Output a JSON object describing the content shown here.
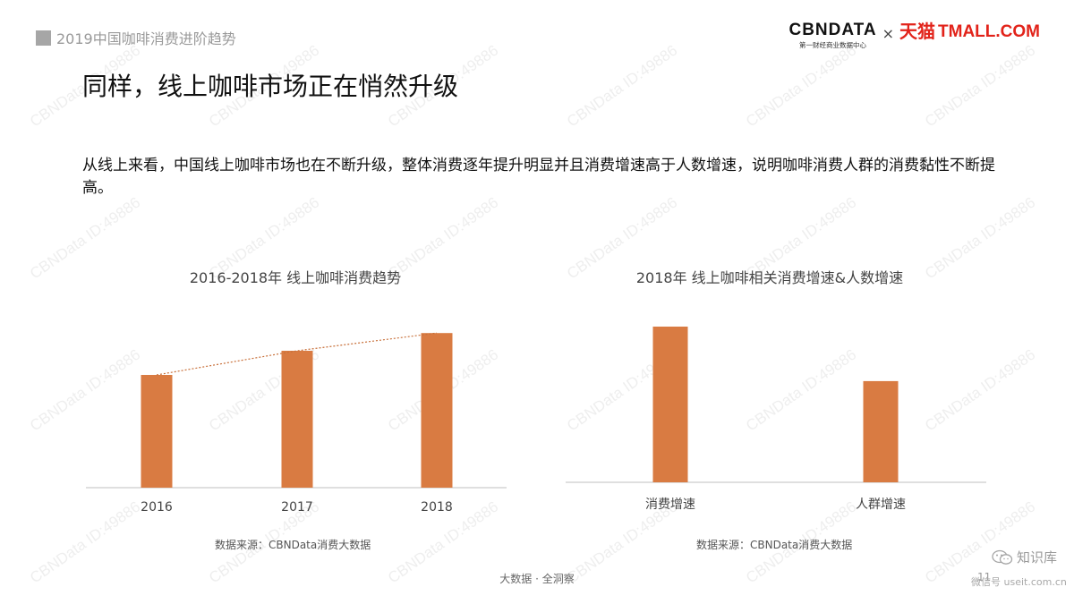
{
  "header": {
    "breadcrumb": "2019中国咖啡消费进阶趋势",
    "logo_main": "CBNDATA",
    "logo_sub": "第一财经商业数据中心",
    "logo_separator": "×",
    "partner_cn": "天猫",
    "partner_en": "TMALL.COM"
  },
  "title": "同样，线上咖啡市场正在悄然升级",
  "description": "从线上来看，中国线上咖啡市场也在不断升级，整体消费逐年提升明显并且消费增速高于人数增速，说明咖啡消费人群的消费黏性不断提高。",
  "watermark": "CBNData ID:49886",
  "footer": {
    "center": "大数据 · 全洞察",
    "page_number": "11",
    "corner_brand": "知识库",
    "corner_url": "微信号 useit.com.cn"
  },
  "colors": {
    "bar": "#d97b42",
    "trend": "#c8703a",
    "axis": "#bfbfbf",
    "square": "#a6a6a6"
  },
  "chart_data": [
    {
      "type": "bar",
      "title": "2016-2018年 线上咖啡消费趋势",
      "categories": [
        "2016",
        "2017",
        "2018"
      ],
      "values": [
        70,
        85,
        96
      ],
      "ylim": [
        0,
        100
      ],
      "trendline": true,
      "grid": false,
      "source": "数据来源：CBNData消费大数据"
    },
    {
      "type": "bar",
      "title": "2018年 线上咖啡相关消费增速&人数增速",
      "categories": [
        "消费增速",
        "人群增速"
      ],
      "values": [
        100,
        65
      ],
      "ylim": [
        0,
        100
      ],
      "grid": false,
      "source": "数据来源：CBNData消费大数据"
    }
  ]
}
